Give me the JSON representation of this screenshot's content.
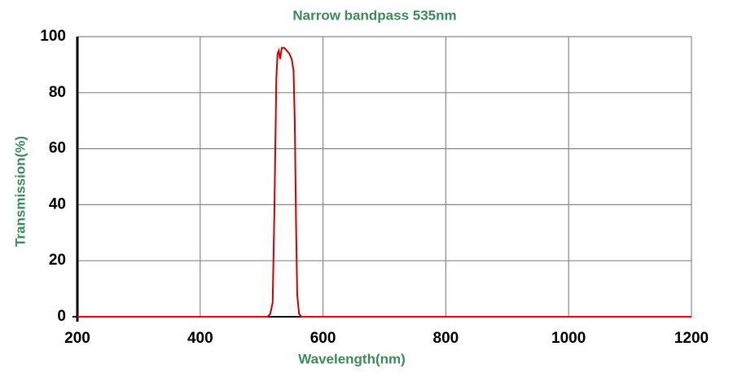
{
  "chart_data": {
    "type": "line",
    "title": "Narrow bandpass 535nm",
    "x_label": "Wavelength(nm)",
    "y_label": "Transmission(%)",
    "x": [
      200,
      510,
      514,
      518,
      521,
      524,
      526,
      528,
      530,
      533,
      537,
      541,
      545,
      549,
      552,
      554,
      556,
      558,
      561,
      565,
      1200
    ],
    "series": [
      {
        "name": "Transmission",
        "color": "#cc0000",
        "values": [
          0,
          0,
          1,
          5,
          40,
          85,
          94,
          95,
          92,
          96,
          96,
          95,
          94,
          92,
          88,
          70,
          35,
          8,
          1,
          0,
          0
        ]
      }
    ],
    "xlim": [
      200,
      1200
    ],
    "xticks": [
      200,
      400,
      600,
      800,
      1000,
      1200
    ],
    "ylim": [
      0,
      100
    ],
    "yticks": [
      0,
      20,
      40,
      60,
      80,
      100
    ],
    "grid": true
  }
}
